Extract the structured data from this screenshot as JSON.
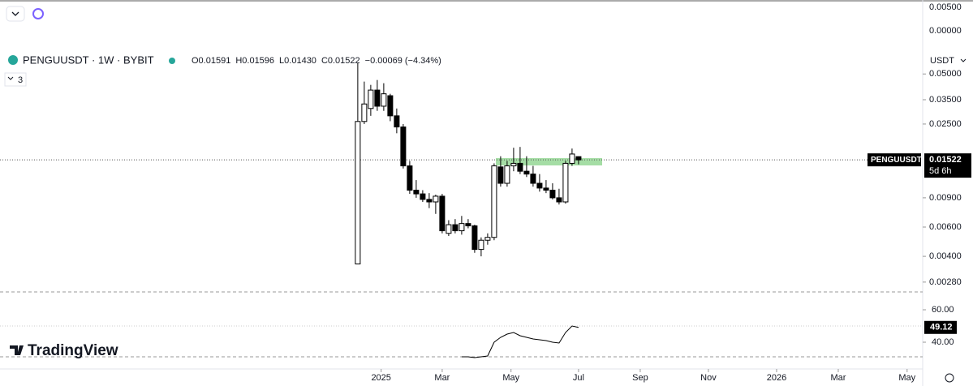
{
  "ui": {
    "quote": "USDT",
    "indicators": "3",
    "brand": "TradingView",
    "top_labels": [
      "0.00500",
      "0.00000"
    ],
    "symbol_tag": "PENGUUSDT",
    "countdown": "5d 6h"
  },
  "chart_data": [
    {
      "type": "candlestick",
      "title": "PENGUUSDT · 1W · BYBIT",
      "legend": [
        "O0.01591",
        "H0.01596",
        "L0.01430",
        "C0.01522",
        "−0.00069 (−4.34%)"
      ],
      "log_scale": true,
      "up_color": "#ffffff",
      "down_color": "#000000",
      "open": [
        0.0036,
        0.0259,
        0.031,
        0.04,
        0.032,
        0.037,
        0.028,
        0.024,
        0.014,
        0.01,
        0.0095,
        0.0088,
        0.0085,
        0.0092,
        0.0055,
        0.0062,
        0.0057,
        0.0063,
        0.0061,
        0.0044,
        0.005,
        0.0052,
        0.0138,
        0.011,
        0.014,
        0.0145,
        0.013,
        0.0125,
        0.011,
        0.0103,
        0.01,
        0.009,
        0.0085,
        0.0145,
        0.01591
      ],
      "high": [
        0.058,
        0.045,
        0.043,
        0.046,
        0.044,
        0.038,
        0.031,
        0.025,
        0.015,
        0.0115,
        0.01,
        0.0096,
        0.0094,
        0.0095,
        0.0066,
        0.0067,
        0.007,
        0.0067,
        0.0062,
        0.0052,
        0.0055,
        0.0145,
        0.016,
        0.015,
        0.018,
        0.0182,
        0.016,
        0.014,
        0.0125,
        0.0115,
        0.011,
        0.0102,
        0.015,
        0.0178,
        0.01596
      ],
      "low": [
        0.0036,
        0.025,
        0.028,
        0.03,
        0.03,
        0.026,
        0.022,
        0.0135,
        0.0095,
        0.009,
        0.0085,
        0.0078,
        0.0072,
        0.0055,
        0.0053,
        0.0055,
        0.0054,
        0.0059,
        0.0042,
        0.004,
        0.0047,
        0.005,
        0.0105,
        0.0105,
        0.013,
        0.0125,
        0.012,
        0.0105,
        0.0098,
        0.0096,
        0.0088,
        0.0082,
        0.0083,
        0.014,
        0.0143
      ],
      "close": [
        0.0259,
        0.033,
        0.04,
        0.032,
        0.038,
        0.028,
        0.024,
        0.014,
        0.01,
        0.0095,
        0.0088,
        0.0085,
        0.0092,
        0.0057,
        0.0062,
        0.0057,
        0.0063,
        0.0061,
        0.0044,
        0.005,
        0.0052,
        0.014,
        0.011,
        0.014,
        0.0145,
        0.013,
        0.0125,
        0.011,
        0.0103,
        0.01,
        0.009,
        0.0085,
        0.0145,
        0.0165,
        0.01522
      ],
      "last_price": {
        "value": 0.01522,
        "label": "0.01522"
      },
      "ylim": [
        0.002443,
        0.1393
      ],
      "yticks": [
        {
          "value": 0.05,
          "label": "0.05000"
        },
        {
          "value": 0.035,
          "label": "0.03500"
        },
        {
          "value": 0.025,
          "label": "0.02500"
        },
        {
          "value": 0.009,
          "label": "0.00900"
        },
        {
          "value": 0.006,
          "label": "0.00600"
        },
        {
          "value": 0.004,
          "label": "0.00400"
        },
        {
          "value": 0.0028,
          "label": "0.00280"
        }
      ],
      "xlim": [
        -55.1,
        87
      ],
      "xticks": [
        {
          "value": 3.6,
          "label": "2025"
        },
        {
          "value": 13,
          "label": "Mar"
        },
        {
          "value": 23.6,
          "label": "May"
        },
        {
          "value": 34,
          "label": "Jul"
        },
        {
          "value": 43.5,
          "label": "Sep"
        },
        {
          "value": 54,
          "label": "Nov"
        },
        {
          "value": 64.5,
          "label": "2026"
        },
        {
          "value": 74,
          "label": "Mar"
        },
        {
          "value": 84.6,
          "label": "May"
        }
      ]
    },
    {
      "type": "line",
      "color": "#000000",
      "values": [
        null,
        null,
        null,
        null,
        null,
        null,
        null,
        null,
        null,
        null,
        null,
        null,
        null,
        null,
        null,
        null,
        31,
        31,
        30.5,
        31,
        31.5,
        40,
        43,
        45,
        46,
        44,
        43,
        42,
        41.5,
        41,
        40,
        39.5,
        46,
        50,
        49.12
      ],
      "last_label": "49.12",
      "ylim": [
        30,
        70
      ],
      "yticks": [
        {
          "value": 60,
          "label": "60.00"
        },
        {
          "value": 40,
          "label": "40.00"
        }
      ]
    }
  ]
}
